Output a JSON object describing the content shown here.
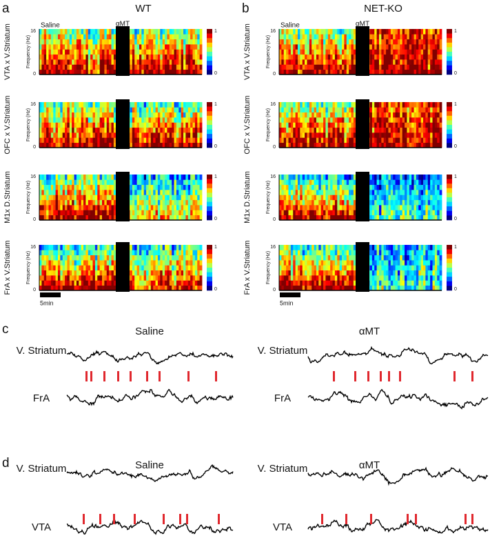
{
  "panels": [
    {
      "letter": "a",
      "title": "WT",
      "conditions": [
        "Saline",
        "αMT"
      ],
      "y_axis_label": "Frequency (Hz)",
      "y_ticks": [
        16,
        0
      ],
      "colorbar_ticks": [
        1,
        0
      ],
      "rows": [
        "VTA x V.Striatum",
        "OFC x V.Striatum",
        "M1x D.Striatum",
        "FrA x V.Striatum"
      ],
      "scale_bar": "5min"
    },
    {
      "letter": "b",
      "title": "NET-KO",
      "conditions": [
        "Saline",
        "αMT"
      ],
      "y_axis_label": "Frequency (Hz)",
      "y_ticks": [
        16,
        0
      ],
      "colorbar_ticks": [
        1,
        0
      ],
      "rows": [
        "VTA x V.Striatum",
        "OFC x V.Striatum",
        "M1x D.Striatum",
        "FrA x V.Striatum"
      ],
      "scale_bar": "5min"
    },
    {
      "letter": "c",
      "conditions": [
        "Saline",
        "αMT"
      ],
      "traces": [
        "V. Striatum",
        "FrA"
      ]
    },
    {
      "letter": "d",
      "conditions": [
        "Saline",
        "αMT"
      ],
      "traces": [
        "V. Striatum",
        "VTA"
      ]
    }
  ]
}
